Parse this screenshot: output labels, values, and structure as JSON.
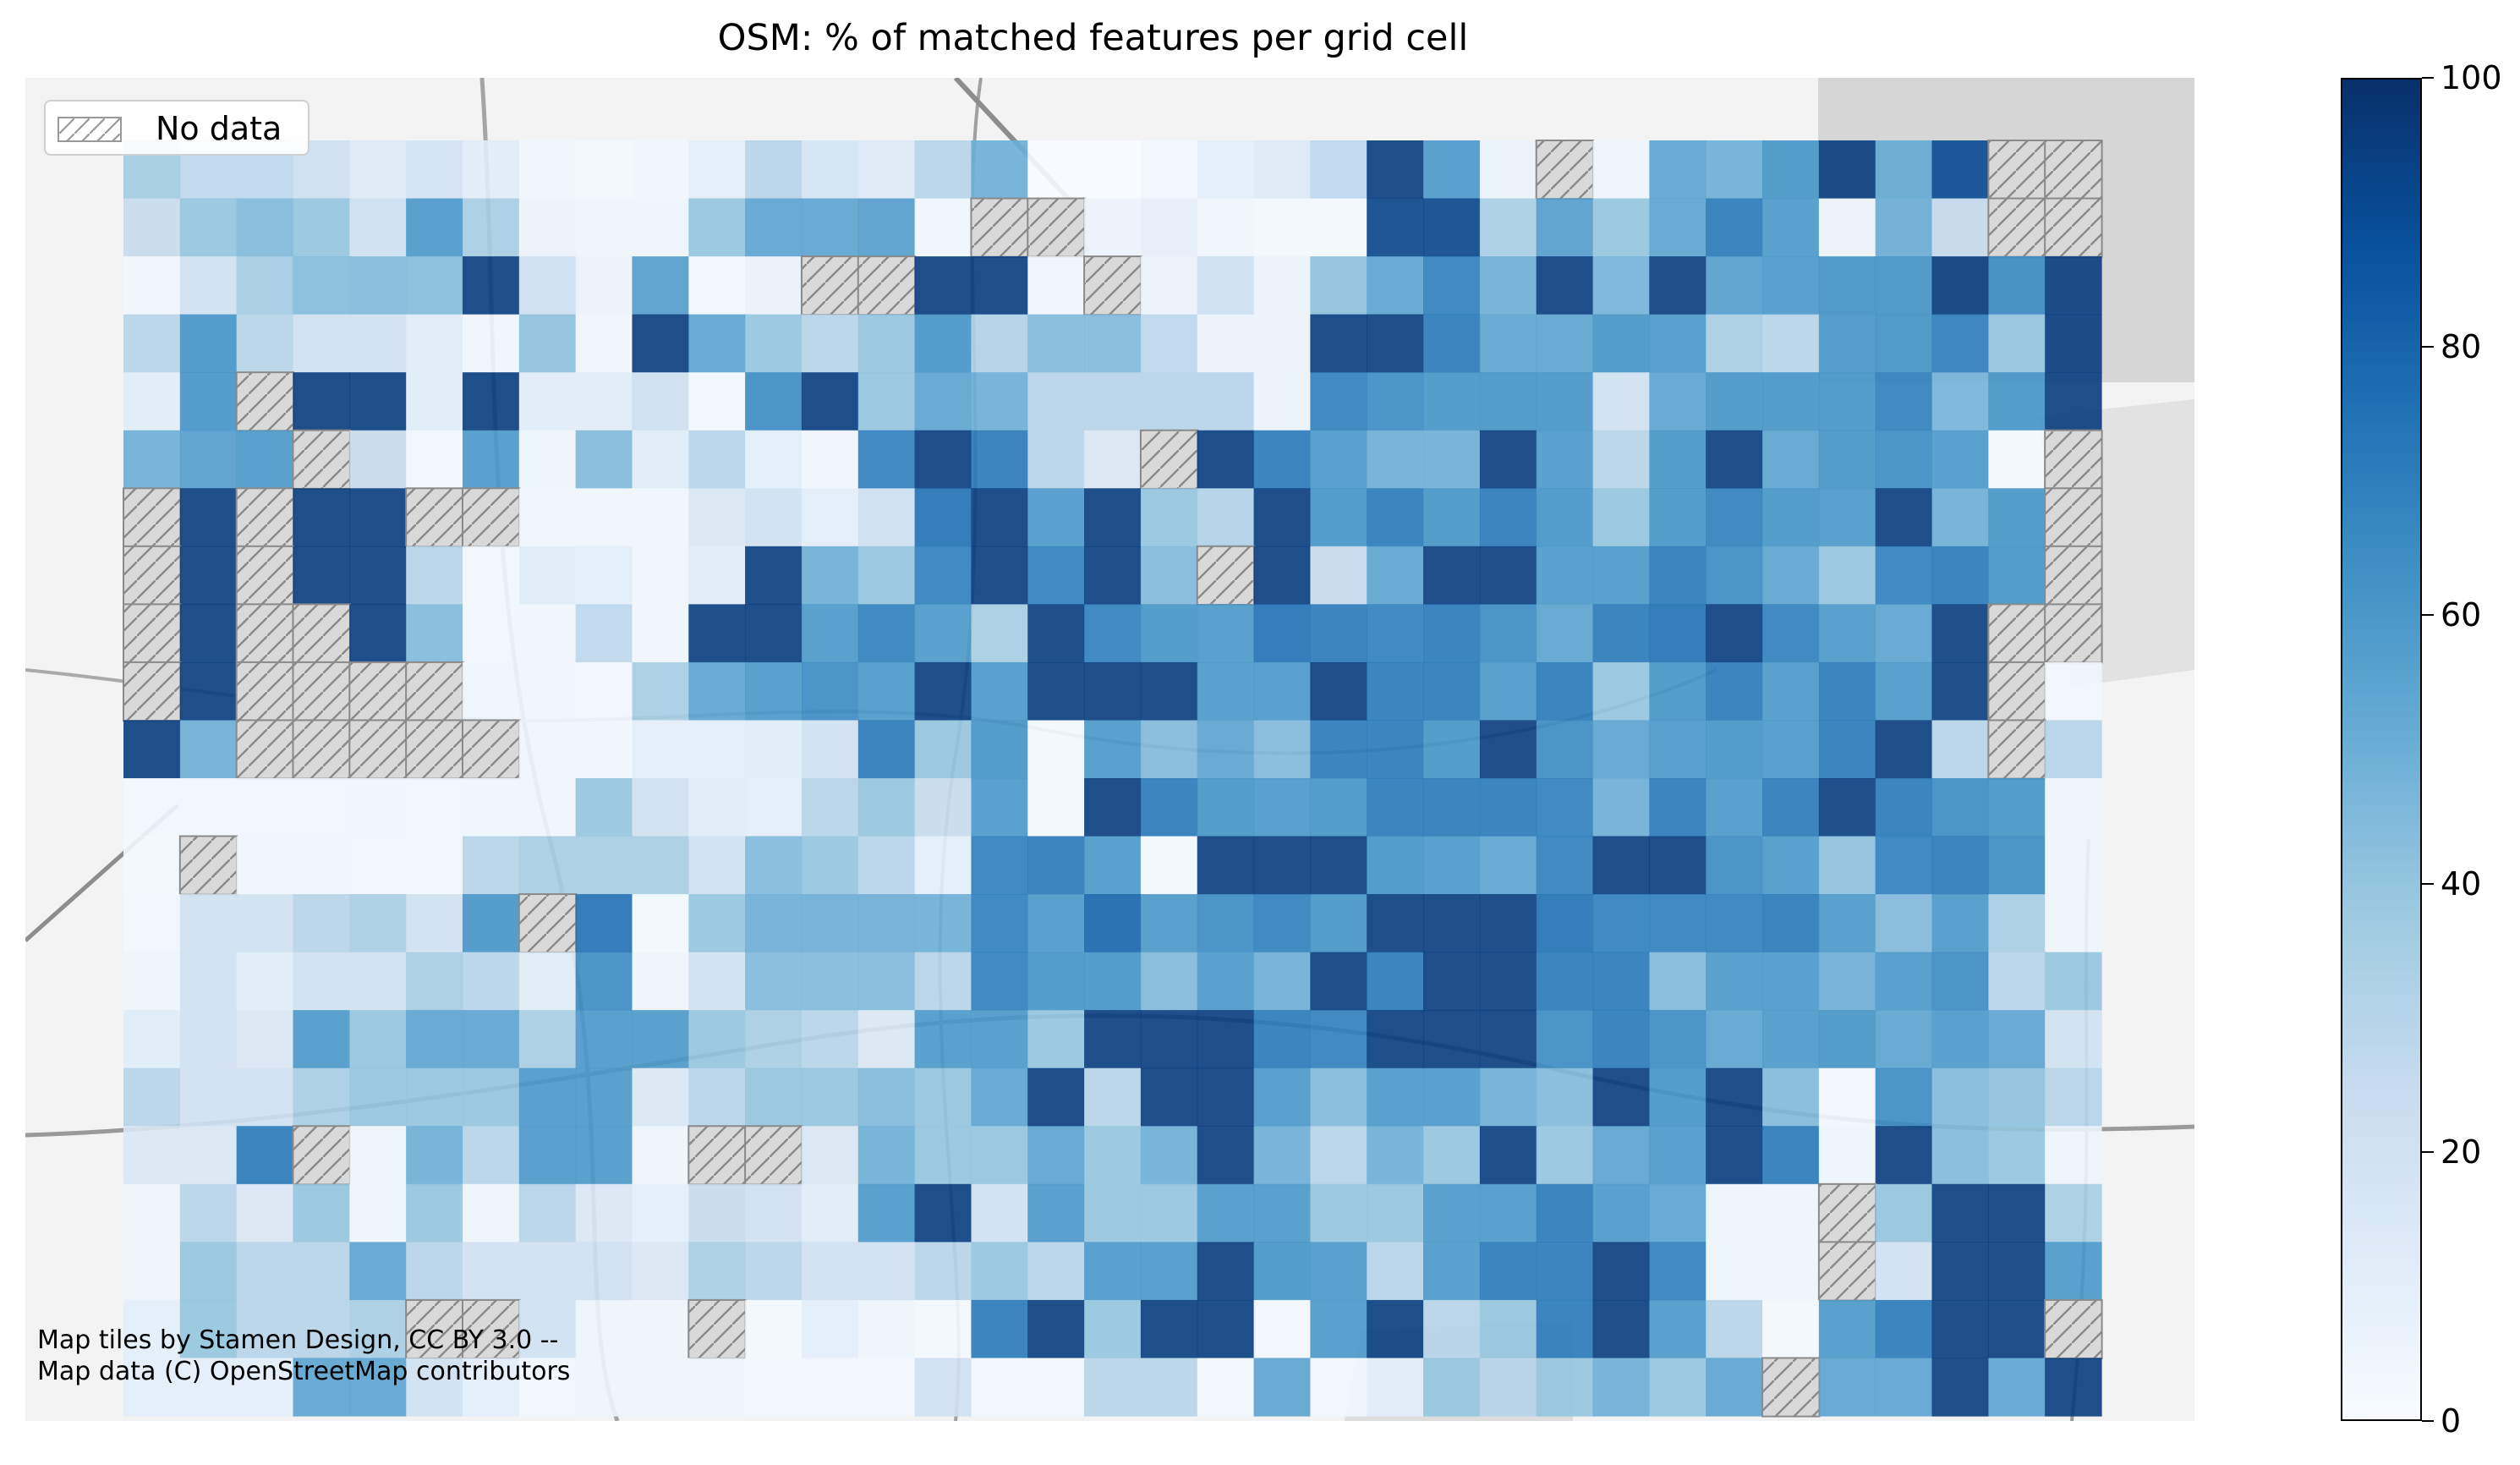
{
  "chart_data": {
    "type": "heatmap",
    "title": "OSM: % of matched features per grid cell",
    "colorbar": {
      "min": 0,
      "max": 100,
      "ticks": [
        0,
        20,
        40,
        60,
        80,
        100
      ],
      "cmap": "Blues"
    },
    "legend": {
      "label": "No data",
      "placement": "top-left"
    },
    "attribution": "Map tiles by Stamen Design, CC BY 3.0 -- Map data (C) OpenStreetMap contributors",
    "grid": {
      "columns": 35,
      "rows": 22,
      "no_data_marker": -1,
      "values": [
        [
          37,
          28,
          28,
          22,
          14,
          19,
          12,
          4,
          2,
          4,
          10,
          30,
          18,
          14,
          30,
          50,
          0,
          0,
          3,
          10,
          14,
          28,
          95,
          60,
          6,
          -1,
          5,
          55,
          50,
          62,
          95,
          52,
          90,
          -1,
          -1
        ],
        [
          25,
          40,
          45,
          40,
          22,
          60,
          35,
          6,
          5,
          5,
          40,
          55,
          55,
          58,
          4,
          -1,
          -1,
          6,
          9,
          4,
          2,
          2,
          92,
          92,
          35,
          58,
          40,
          55,
          72,
          60,
          4,
          50,
          25,
          -1,
          -1
        ],
        [
          4,
          20,
          36,
          44,
          45,
          44,
          95,
          22,
          6,
          58,
          3,
          7,
          -1,
          -1,
          95,
          95,
          4,
          -1,
          6,
          22,
          6,
          42,
          55,
          70,
          50,
          95,
          48,
          95,
          58,
          60,
          62,
          62,
          95,
          65,
          95
        ],
        [
          30,
          62,
          30,
          20,
          20,
          12,
          4,
          42,
          4,
          95,
          55,
          40,
          30,
          40,
          62,
          32,
          45,
          45,
          28,
          6,
          6,
          95,
          95,
          72,
          55,
          55,
          62,
          60,
          35,
          30,
          60,
          62,
          70,
          40,
          95
        ],
        [
          12,
          62,
          -1,
          95,
          95,
          12,
          95,
          11,
          12,
          22,
          3,
          65,
          95,
          40,
          55,
          50,
          30,
          30,
          30,
          30,
          6,
          70,
          65,
          62,
          62,
          62,
          20,
          55,
          62,
          62,
          62,
          70,
          48,
          62,
          95
        ],
        [
          50,
          58,
          60,
          -1,
          25,
          3,
          60,
          5,
          45,
          12,
          30,
          10,
          4,
          70,
          95,
          72,
          30,
          15,
          -1,
          95,
          72,
          60,
          50,
          50,
          95,
          60,
          30,
          62,
          95,
          55,
          62,
          65,
          60,
          2,
          -1
        ],
        [
          -1,
          95,
          -1,
          95,
          95,
          -1,
          -1,
          4,
          4,
          4,
          15,
          20,
          10,
          22,
          75,
          95,
          60,
          95,
          40,
          32,
          95,
          62,
          72,
          62,
          72,
          62,
          40,
          62,
          70,
          62,
          60,
          95,
          50,
          62,
          -1
        ],
        [
          -1,
          95,
          -1,
          95,
          95,
          30,
          3,
          12,
          10,
          4,
          12,
          95,
          50,
          40,
          70,
          95,
          70,
          95,
          45,
          -1,
          95,
          25,
          55,
          95,
          95,
          60,
          60,
          72,
          65,
          55,
          40,
          70,
          72,
          62,
          -1
        ],
        [
          -1,
          95,
          -1,
          -1,
          95,
          45,
          3,
          4,
          28,
          4,
          95,
          95,
          60,
          70,
          60,
          35,
          95,
          70,
          62,
          60,
          75,
          72,
          70,
          72,
          65,
          55,
          72,
          75,
          95,
          70,
          60,
          55,
          95,
          -1,
          -1
        ],
        [
          -1,
          95,
          -1,
          -1,
          -1,
          -1,
          4,
          4,
          3,
          35,
          55,
          60,
          65,
          60,
          95,
          60,
          95,
          95,
          95,
          60,
          60,
          95,
          72,
          72,
          60,
          72,
          40,
          62,
          72,
          60,
          72,
          60,
          95,
          -1,
          3
        ],
        [
          95,
          50,
          -1,
          -1,
          -1,
          -1,
          -1,
          4,
          4,
          10,
          10,
          12,
          20,
          72,
          40,
          62,
          2,
          60,
          45,
          55,
          45,
          72,
          72,
          62,
          95,
          65,
          55,
          60,
          62,
          60,
          72,
          95,
          30,
          -1,
          30
        ],
        [
          3,
          3,
          3,
          3,
          4,
          3,
          4,
          4,
          40,
          20,
          12,
          10,
          30,
          40,
          25,
          60,
          2,
          95,
          72,
          62,
          60,
          62,
          72,
          72,
          72,
          70,
          50,
          72,
          60,
          72,
          95,
          72,
          65,
          62,
          5
        ],
        [
          2,
          -1,
          4,
          4,
          3,
          3,
          30,
          35,
          35,
          35,
          20,
          45,
          40,
          30,
          10,
          70,
          72,
          60,
          2,
          95,
          95,
          95,
          62,
          60,
          55,
          70,
          95,
          95,
          65,
          60,
          42,
          70,
          72,
          65,
          5
        ],
        [
          3,
          20,
          20,
          30,
          35,
          20,
          62,
          -1,
          75,
          2,
          40,
          50,
          50,
          50,
          50,
          70,
          60,
          80,
          60,
          65,
          70,
          62,
          95,
          95,
          95,
          75,
          70,
          70,
          70,
          72,
          60,
          45,
          60,
          35,
          5
        ],
        [
          5,
          20,
          12,
          20,
          20,
          35,
          30,
          12,
          65,
          5,
          20,
          45,
          45,
          45,
          30,
          70,
          62,
          62,
          45,
          60,
          50,
          95,
          72,
          95,
          95,
          72,
          72,
          45,
          60,
          60,
          50,
          60,
          65,
          30,
          40
        ],
        [
          12,
          20,
          15,
          60,
          40,
          55,
          55,
          35,
          60,
          60,
          40,
          35,
          30,
          15,
          60,
          60,
          40,
          95,
          95,
          95,
          72,
          70,
          95,
          95,
          95,
          65,
          72,
          65,
          55,
          60,
          62,
          55,
          60,
          55,
          20
        ],
        [
          30,
          20,
          20,
          35,
          40,
          40,
          40,
          60,
          60,
          15,
          30,
          40,
          40,
          45,
          40,
          55,
          95,
          30,
          95,
          95,
          60,
          45,
          60,
          60,
          50,
          45,
          95,
          62,
          95,
          45,
          3,
          65,
          45,
          42,
          30
        ],
        [
          15,
          15,
          72,
          -1,
          5,
          50,
          30,
          60,
          60,
          5,
          -1,
          -1,
          15,
          50,
          40,
          40,
          55,
          40,
          50,
          95,
          50,
          30,
          50,
          40,
          95,
          40,
          55,
          60,
          95,
          72,
          5,
          95,
          45,
          40,
          5
        ],
        [
          5,
          30,
          15,
          40,
          5,
          40,
          5,
          30,
          15,
          10,
          25,
          20,
          12,
          60,
          95,
          20,
          60,
          40,
          40,
          60,
          60,
          40,
          40,
          60,
          60,
          72,
          60,
          55,
          5,
          5,
          -1,
          40,
          95,
          95,
          35
        ],
        [
          5,
          40,
          30,
          30,
          55,
          30,
          20,
          20,
          20,
          15,
          35,
          30,
          20,
          20,
          30,
          40,
          30,
          60,
          60,
          95,
          62,
          60,
          30,
          60,
          72,
          72,
          95,
          70,
          5,
          5,
          -1,
          20,
          95,
          95,
          60
        ],
        [
          10,
          40,
          30,
          30,
          35,
          -1,
          -1,
          20,
          5,
          5,
          -1,
          2,
          10,
          5,
          2,
          72,
          95,
          40,
          95,
          95,
          3,
          60,
          95,
          30,
          40,
          72,
          95,
          60,
          30,
          2,
          60,
          72,
          95,
          95,
          -1
        ],
        [
          10,
          10,
          10,
          55,
          55,
          20,
          10,
          3,
          5,
          5,
          5,
          3,
          3,
          3,
          20,
          3,
          3,
          30,
          30,
          3,
          55,
          3,
          10,
          40,
          30,
          40,
          50,
          40,
          55,
          -1,
          55,
          55,
          95,
          55,
          95
        ]
      ]
    }
  }
}
